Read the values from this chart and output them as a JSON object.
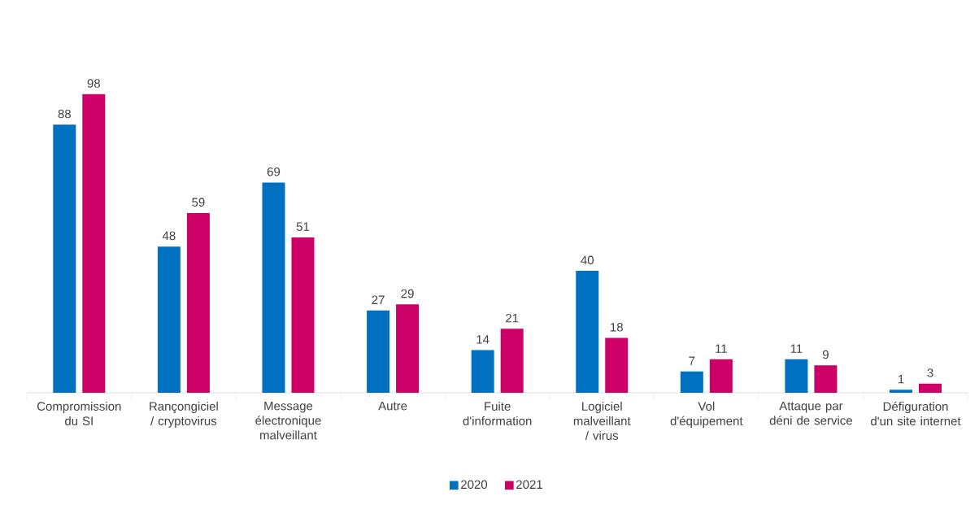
{
  "chart_data": {
    "type": "bar",
    "categories": [
      "Compromission du SI",
      "Rançongiciel / cryptovirus",
      "Message électronique malveillant",
      "Autre",
      "Fuite d'information",
      "Logiciel malveillant / virus",
      "Vol d'équipement",
      "Attaque par déni de service",
      "Défiguration d'un site internet"
    ],
    "series": [
      {
        "name": "2020",
        "color": "#0070c0",
        "values": [
          88,
          48,
          69,
          27,
          14,
          40,
          7,
          11,
          1
        ]
      },
      {
        "name": "2021",
        "color": "#cc0066",
        "values": [
          98,
          59,
          51,
          29,
          21,
          18,
          11,
          9,
          3
        ]
      }
    ],
    "data_labels": true,
    "legend": "bottom"
  }
}
